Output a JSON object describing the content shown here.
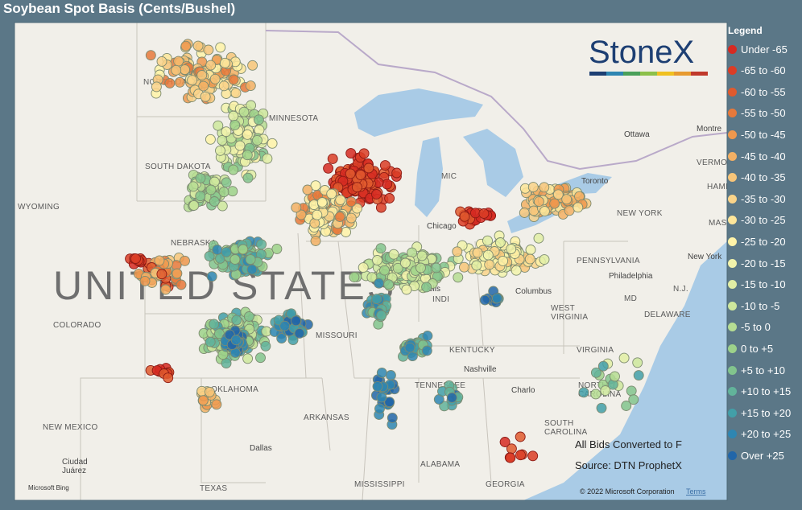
{
  "title": "Soybean Spot Basis (Cents/Bushel)",
  "legend": {
    "title": "Legend",
    "items": [
      {
        "label": "Under -65",
        "color": "#d62a22"
      },
      {
        "label": "-65 to -60",
        "color": "#db3d26"
      },
      {
        "label": "-60 to -55",
        "color": "#e05a2e"
      },
      {
        "label": "-55 to -50",
        "color": "#e7793b"
      },
      {
        "label": "-50 to -45",
        "color": "#ee984e"
      },
      {
        "label": "-45 to -40",
        "color": "#f3b064"
      },
      {
        "label": "-40 to -35",
        "color": "#f7c579"
      },
      {
        "label": "-35 to -30",
        "color": "#fad489"
      },
      {
        "label": "-30 to -25",
        "color": "#fde69a"
      },
      {
        "label": "-25 to -20",
        "color": "#fff3a8"
      },
      {
        "label": "-20 to -15",
        "color": "#f2f3ab"
      },
      {
        "label": "-15 to -10",
        "color": "#e2eea5"
      },
      {
        "label": "-10 to -5",
        "color": "#cee79c"
      },
      {
        "label": "-5 to 0",
        "color": "#b6dd93"
      },
      {
        "label": "0 to +5",
        "color": "#9dd28a"
      },
      {
        "label": "+5 to +10",
        "color": "#82c48d"
      },
      {
        "label": "+10 to +15",
        "color": "#62b39a"
      },
      {
        "label": "+15 to +20",
        "color": "#429fa8"
      },
      {
        "label": "+20 to +25",
        "color": "#2e86b2"
      },
      {
        "label": "Over +25",
        "color": "#2266a8"
      }
    ]
  },
  "logo": "StoneX",
  "notes": [
    "All Bids Converted to F",
    "Source: DTN ProphetX"
  ],
  "copyright": "© 2022 Microsoft Corporation",
  "terms": "Terms",
  "bing": "Microsoft Bing",
  "country_label": "UNITED STATES",
  "map_labels": [
    "NORTH DA",
    "MINNESOTA",
    "SOUTH DAKOTA",
    "WYOMING",
    "NEBRASKA",
    "COLORADO",
    "MISSOURI",
    "KENTUCKY",
    "TENNESSEE",
    "ARKANSAS",
    "OKLAHOMA",
    "NEW MEXICO",
    "TEXAS",
    "MISSISSIPPI",
    "ALABAMA",
    "GEORGIA",
    "SOUTH\nCAROLINA",
    "NORTH\nCAROLINA",
    "VIRGINIA",
    "WEST\nVIRGINIA",
    "PENNSYLVANIA",
    "NEW YORK",
    "INDI",
    "MD",
    "DELAWARE",
    "VERMON",
    "HAMP",
    "MASS",
    "N.J.",
    "Ottawa",
    "Montre",
    "Toronto",
    "Chicago",
    "Columbus",
    "Nashville",
    "Philadelphia",
    "New York",
    "Dallas",
    "Charlo",
    "Ciudad\nJuárez",
    "olis",
    "MIC"
  ]
}
